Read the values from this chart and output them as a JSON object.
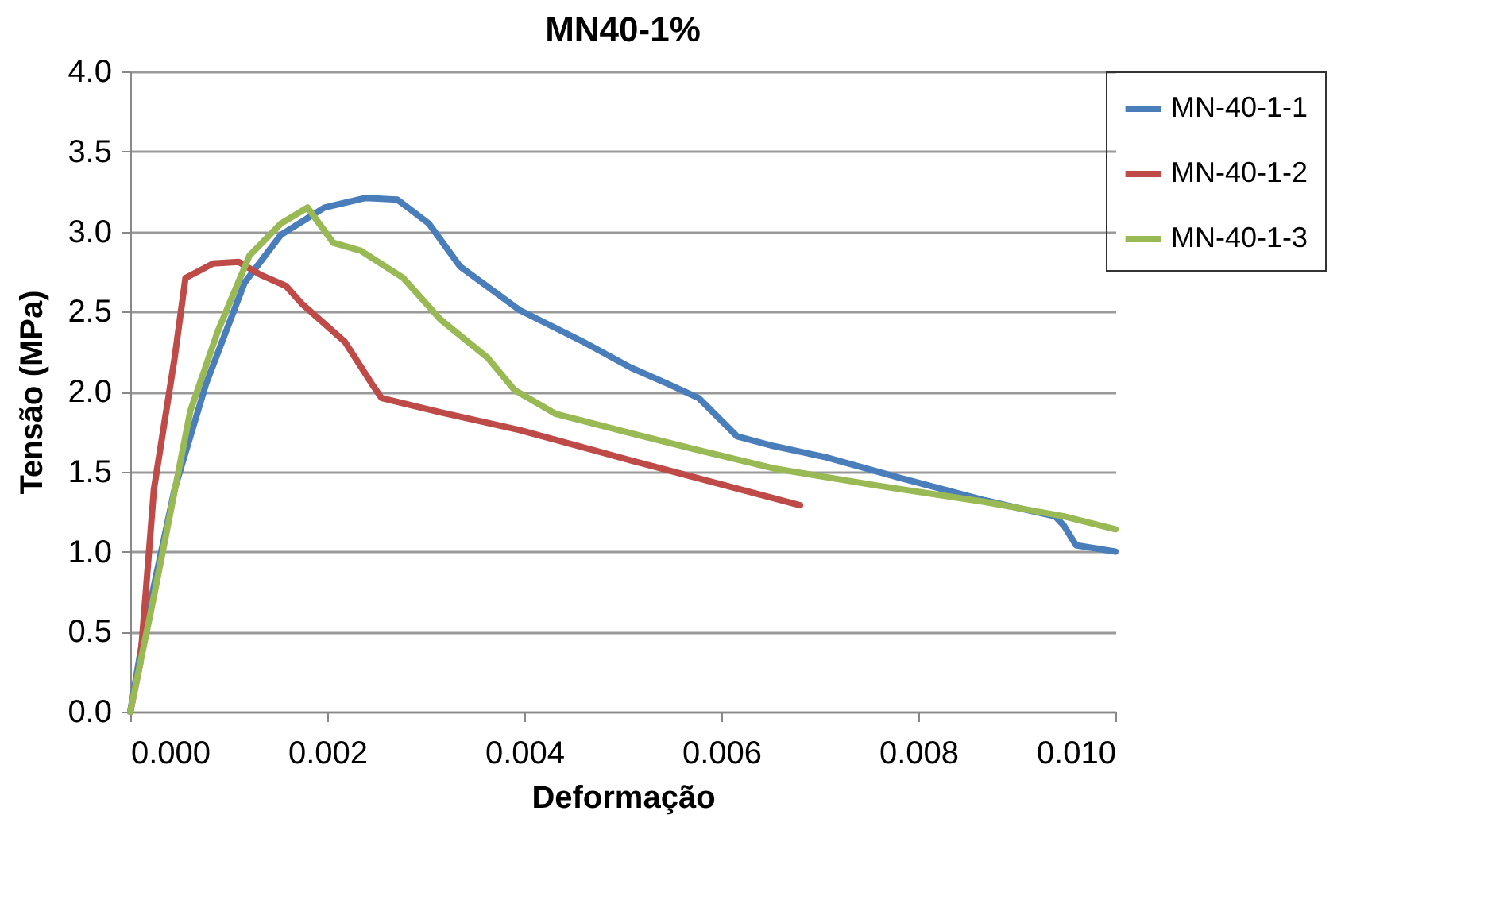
{
  "chart_data": {
    "type": "line",
    "title": "MN40-1%",
    "xlabel": "Deformação",
    "ylabel": "Tensão (MPa)",
    "xlim": [
      0,
      0.01
    ],
    "ylim": [
      0,
      4
    ],
    "xticks": [
      {
        "value": 0,
        "label": "0.000"
      },
      {
        "value": 0.002,
        "label": "0.002"
      },
      {
        "value": 0.004,
        "label": "0.004"
      },
      {
        "value": 0.006,
        "label": "0.006"
      },
      {
        "value": 0.008,
        "label": "0.008"
      },
      {
        "value": 0.01,
        "label": "0.010"
      }
    ],
    "yticks": [
      {
        "value": 0,
        "label": "0.0"
      },
      {
        "value": 0.5,
        "label": "0.5"
      },
      {
        "value": 1,
        "label": "1.0"
      },
      {
        "value": 1.5,
        "label": "1.5"
      },
      {
        "value": 2,
        "label": "2.0"
      },
      {
        "value": 2.5,
        "label": "2.5"
      },
      {
        "value": 3,
        "label": "3.0"
      },
      {
        "value": 3.5,
        "label": "3.5"
      },
      {
        "value": 4,
        "label": "4.0"
      }
    ],
    "grid": "y",
    "legend": "right",
    "line_style": "solid",
    "marker": "none",
    "series": [
      {
        "name": "MN-40-1-1",
        "color": "#4a7ebb",
        "x": [
          0,
          0.00013,
          0.00045,
          0.00077,
          0.00116,
          0.00153,
          0.00197,
          0.00239,
          0.00271,
          0.00303,
          0.00335,
          0.00395,
          0.0046,
          0.00508,
          0.00545,
          0.00577,
          0.00616,
          0.00653,
          0.00706,
          0.00782,
          0.00868,
          0.00939,
          0.00948,
          0.0096,
          0.01
        ],
        "values": [
          0,
          0.47,
          1.39,
          2.05,
          2.68,
          2.98,
          3.15,
          3.21,
          3.2,
          3.05,
          2.78,
          2.51,
          2.31,
          2.15,
          2.05,
          1.96,
          1.72,
          1.66,
          1.59,
          1.46,
          1.32,
          1.22,
          1.16,
          1.04,
          1.0
        ]
      },
      {
        "name": "MN-40-1-2",
        "color": "#be4b48",
        "x": [
          0,
          0.0001,
          0.00024,
          0.00045,
          0.00056,
          0.00084,
          0.0011,
          0.00132,
          0.00158,
          0.00174,
          0.00218,
          0.00245,
          0.00255,
          0.00315,
          0.00395,
          0.00508,
          0.0068
        ],
        "values": [
          0,
          0.3,
          1.39,
          2.21,
          2.71,
          2.8,
          2.81,
          2.73,
          2.66,
          2.55,
          2.31,
          2.05,
          1.96,
          1.87,
          1.76,
          1.57,
          1.29
        ]
      },
      {
        "name": "MN-40-1-3",
        "color": "#98b954",
        "x": [
          0,
          0.00024,
          0.00061,
          0.00089,
          0.00121,
          0.00153,
          0.0018,
          0.00206,
          0.00234,
          0.00277,
          0.00315,
          0.00363,
          0.0039,
          0.00432,
          0.00508,
          0.00573,
          0.00653,
          0.00761,
          0.00868,
          0.00948,
          0.01
        ],
        "values": [
          0,
          0.72,
          1.88,
          2.38,
          2.85,
          3.05,
          3.15,
          2.93,
          2.88,
          2.71,
          2.45,
          2.21,
          2.01,
          1.86,
          1.74,
          1.64,
          1.52,
          1.41,
          1.31,
          1.22,
          1.14
        ]
      }
    ]
  }
}
